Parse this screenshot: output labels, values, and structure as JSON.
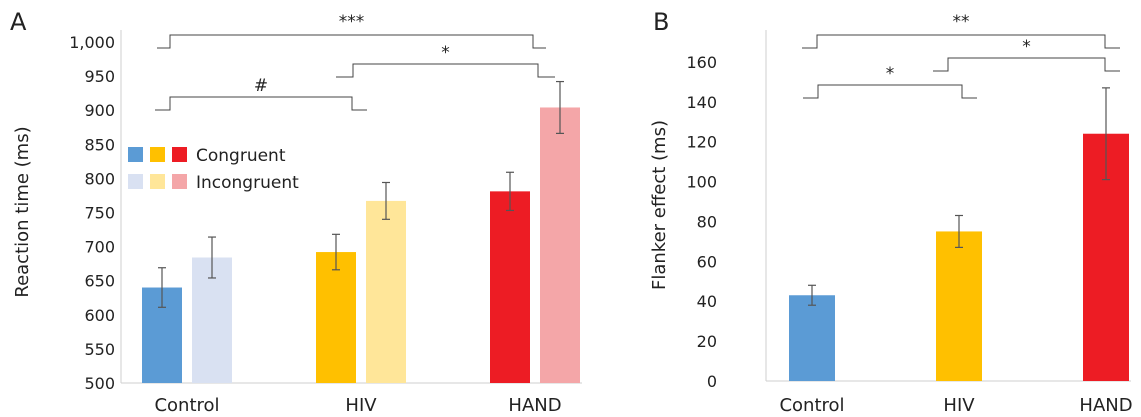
{
  "chart_data": [
    {
      "panel": "A",
      "type": "bar",
      "categories": [
        "Control",
        "HIV",
        "HAND"
      ],
      "ylabel": "Reaction time (ms)",
      "ylim": [
        500,
        1000
      ],
      "yticks": [
        "500",
        "550",
        "600",
        "650",
        "700",
        "750",
        "800",
        "850",
        "900",
        "950",
        "1,000"
      ],
      "series": [
        {
          "name": "Congruent",
          "values": [
            640,
            692,
            781
          ],
          "errors": [
            29,
            26,
            28
          ],
          "colors": [
            "#5b9bd5",
            "#ffc000",
            "#ed1c24"
          ]
        },
        {
          "name": "Incongruent",
          "values": [
            684,
            767,
            904
          ],
          "errors": [
            30,
            27,
            38
          ],
          "colors": [
            "#d9e1f2",
            "#ffe699",
            "#f4a6a8"
          ]
        }
      ],
      "significance": [
        {
          "label": "***",
          "from": "Control",
          "to": "HAND"
        },
        {
          "label": "*",
          "from": "HIV",
          "to": "HAND"
        },
        {
          "label": "#",
          "from": "Control",
          "to": "HIV"
        }
      ],
      "legend_position": "upper-left"
    },
    {
      "panel": "B",
      "type": "bar",
      "categories": [
        "Control",
        "HIV",
        "HAND"
      ],
      "ylabel": "Flanker effect (ms)",
      "ylim": [
        0,
        170
      ],
      "yticks": [
        "0",
        "20",
        "40",
        "60",
        "80",
        "100",
        "120",
        "140",
        "160"
      ],
      "series": [
        {
          "values": [
            43,
            75,
            124
          ],
          "errors": [
            5,
            8,
            23
          ],
          "colors": [
            "#5b9bd5",
            "#ffc000",
            "#ed1c24"
          ]
        }
      ],
      "significance": [
        {
          "label": "**",
          "from": "Control",
          "to": "HAND"
        },
        {
          "label": "*",
          "from": "HIV",
          "to": "HAND"
        },
        {
          "label": "*",
          "from": "Control",
          "to": "HIV"
        }
      ]
    }
  ]
}
